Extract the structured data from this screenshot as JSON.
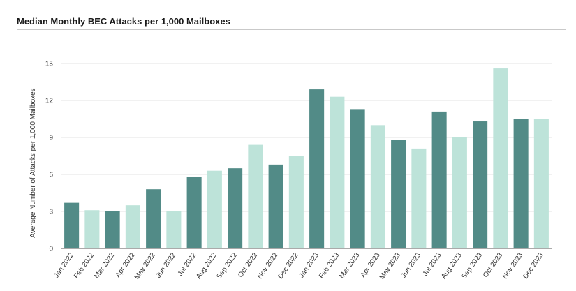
{
  "header": {
    "title": "Median Monthly BEC Attacks per 1,000 Mailboxes"
  },
  "colors": {
    "dark": "#528b87",
    "light": "#bde3d9",
    "grid": "#e3e3e3",
    "axis": "#555555"
  },
  "chart_data": {
    "type": "bar",
    "title": "Median Monthly BEC Attacks per 1,000 Mailboxes",
    "xlabel": "",
    "ylabel": "Average Number of Attacks per 1,000 Mailboxes",
    "ylim": [
      0,
      15
    ],
    "yticks": [
      0,
      3,
      6,
      9,
      12,
      15
    ],
    "grid": true,
    "categories": [
      "Jan 2022",
      "Feb 2022",
      "Mar 2022",
      "Apr 2022",
      "May 2022",
      "Jun 2022",
      "Jul 2022",
      "Aug 2022",
      "Sep 2022",
      "Oct 2022",
      "Nov 2022",
      "Dec 2022",
      "Jan 2023",
      "Feb 2023",
      "Mar 2023",
      "Apr 2023",
      "May 2023",
      "Jun 2023",
      "Jul 2023",
      "Aug 2023",
      "Sep 2023",
      "Oct 2023",
      "Nov 2023",
      "Dec 2023"
    ],
    "values": [
      3.7,
      3.1,
      3.0,
      3.5,
      4.8,
      3.0,
      5.8,
      6.3,
      6.5,
      8.4,
      6.8,
      7.5,
      12.9,
      12.3,
      11.3,
      10.0,
      8.8,
      8.1,
      11.1,
      9.0,
      10.3,
      14.6,
      10.5,
      10.5
    ],
    "bar_colors": [
      "dark",
      "light",
      "dark",
      "light",
      "dark",
      "light",
      "dark",
      "light",
      "dark",
      "light",
      "dark",
      "light",
      "dark",
      "light",
      "dark",
      "light",
      "dark",
      "light",
      "dark",
      "light",
      "dark",
      "light",
      "dark",
      "light"
    ]
  }
}
